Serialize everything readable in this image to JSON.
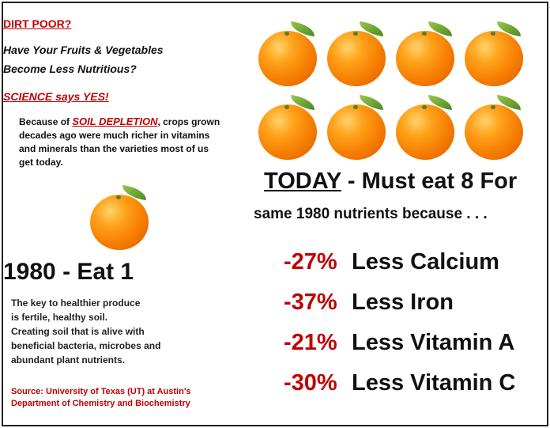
{
  "left": {
    "heading": "DIRT POOR?",
    "question_line1": "Have Your Fruits & Vegetables",
    "question_line2": "Become Less Nutritious?",
    "science": "SCIENCE says YES!",
    "body_prefix": "Because of ",
    "body_highlight": "SOIL DEPLETION",
    "body_rest": ", crops grown decades ago were much richer in vitamins and minerals than the varieties most of us get today.",
    "eat_title": "1980 - Eat 1",
    "produce_text_1": "The key to healthier produce",
    "produce_text_2": "is fertile, healthy soil.",
    "produce_text_3": "Creating soil that is alive with",
    "produce_text_4": "beneficial bacteria, microbes and",
    "produce_text_5": "abundant plant nutrients.",
    "source_line1": "Source: University of Texas (UT) at Austin's",
    "source_line2": "Department of Chemistry and Biochemistry"
  },
  "right": {
    "today_word": "TODAY",
    "today_rest": " - Must eat 8 For",
    "same_line": "same 1980 nutrients because . . .",
    "stats": [
      {
        "pct": "-27%",
        "label": "Less Calcium"
      },
      {
        "pct": "-37%",
        "label": "Less Iron"
      },
      {
        "pct": "-21%",
        "label": "Less Vitamin A"
      },
      {
        "pct": "-30%",
        "label": "Less Vitamin C"
      }
    ]
  },
  "colors": {
    "accent_red": "#c00000",
    "orange": "#f57c00",
    "leaf": "#4b8a1f"
  },
  "icons": {
    "fruit": "orange-icon"
  }
}
